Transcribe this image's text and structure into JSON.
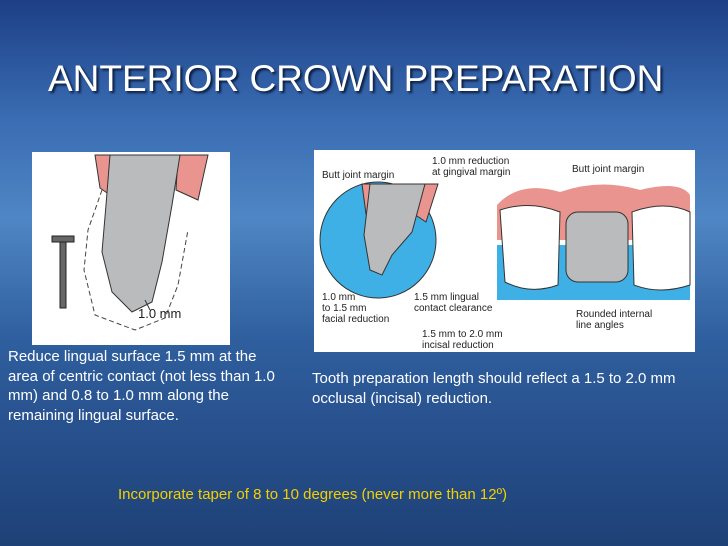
{
  "title": "ANTERIOR CROWN PREPARATION",
  "left_figure": {
    "labels": [
      {
        "lines": [
          "1.0 mm"
        ]
      }
    ]
  },
  "right_figure": {
    "labels": [
      {
        "lines": [
          "Butt joint margin"
        ]
      },
      {
        "lines": [
          "1.0 mm reduction",
          "at gingival margin"
        ]
      },
      {
        "lines": [
          "Butt joint margin"
        ]
      },
      {
        "lines": [
          "1.5 mm lingual",
          "contact clearance"
        ]
      },
      {
        "lines": [
          "1.0 mm",
          "to 1.5 mm",
          "facial reduction"
        ]
      },
      {
        "lines": [
          "Rounded internal",
          "line angles"
        ]
      },
      {
        "lines": [
          "1.5 mm to 2.0 mm",
          "incisal reduction"
        ]
      }
    ]
  },
  "left_text": "Reduce lingual surface 1.5 mm at the area of centric contact (not less than 1.0 mm) and 0.8 to 1.0 mm along the remaining lingual surface.",
  "right_text": "Tooth preparation length should reflect a 1.5 to 2.0 mm occlusal (incisal) reduction.",
  "footer_text": "Incorporate taper of 8 to 10 degrees (never more than 12º)"
}
